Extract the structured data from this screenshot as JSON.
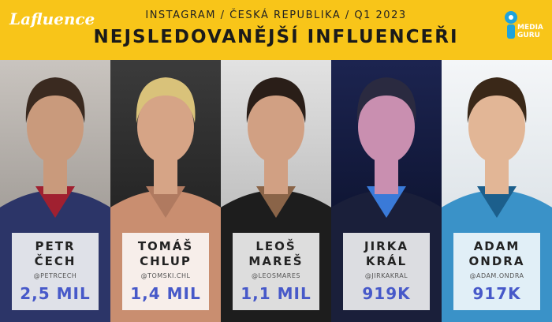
{
  "header": {
    "logo": "Lafluence",
    "subtitle": "INSTAGRAM / ČESKÁ REPUBLIKA / Q1 2023",
    "title": "NEJSLEDOVANĚJŠÍ INFLUENCEŘI",
    "partner_logo": [
      "MEDIA",
      "GURU"
    ]
  },
  "influencers": [
    {
      "first_name": "PETR",
      "last_name": "ČECH",
      "handle": "@PETRCECH",
      "followers": "2,5 MIL"
    },
    {
      "first_name": "TOMÁŠ",
      "last_name": "CHLUP",
      "handle": "@TOMSKI.CHL",
      "followers": "1,4 MIL"
    },
    {
      "first_name": "LEOŠ",
      "last_name": "MAREŠ",
      "handle": "@LEOSMARES",
      "followers": "1,1 MIL"
    },
    {
      "first_name": "JIRKA",
      "last_name": "KRÁL",
      "handle": "@JIRKAKRAL",
      "followers": "919K"
    },
    {
      "first_name": "ADAM",
      "last_name": "ONDRA",
      "handle": "@ADAM.ONDRA",
      "followers": "917K"
    }
  ]
}
